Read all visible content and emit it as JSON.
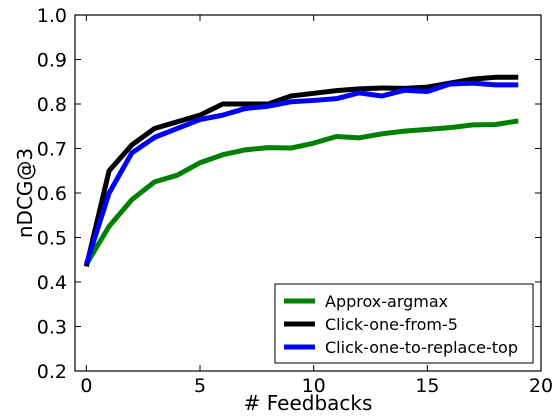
{
  "chart_data": {
    "type": "line",
    "title": "",
    "xlabel": "# Feedbacks",
    "ylabel": "nDCG@3",
    "xlim": [
      -0.5,
      20
    ],
    "ylim": [
      0.2,
      1.0
    ],
    "xticks": [
      0,
      5,
      10,
      15,
      20
    ],
    "xtick_labels": [
      "0",
      "5",
      "10",
      "15",
      "20"
    ],
    "yticks": [
      0.2,
      0.3,
      0.4,
      0.5,
      0.6,
      0.7,
      0.8,
      0.9,
      1.0
    ],
    "ytick_labels": [
      "0.2",
      "0.3",
      "0.4",
      "0.5",
      "0.6",
      "0.7",
      "0.8",
      "0.9",
      "1.0"
    ],
    "grid": false,
    "legend_position": "bottom-right",
    "x": [
      0,
      1,
      2,
      3,
      4,
      5,
      6,
      7,
      8,
      9,
      10,
      11,
      12,
      13,
      14,
      15,
      16,
      17,
      18,
      19
    ],
    "series": [
      {
        "name": "Approx-argmax",
        "color": "#008000",
        "values": [
          0.44,
          0.525,
          0.585,
          0.625,
          0.64,
          0.668,
          0.686,
          0.697,
          0.702,
          0.701,
          0.712,
          0.727,
          0.724,
          0.733,
          0.739,
          0.743,
          0.747,
          0.753,
          0.754,
          0.762
        ]
      },
      {
        "name": "Click-one-from-5",
        "color": "#000000",
        "values": [
          0.435,
          0.65,
          0.708,
          0.745,
          0.76,
          0.775,
          0.8,
          0.8,
          0.8,
          0.818,
          0.824,
          0.83,
          0.834,
          0.836,
          0.835,
          0.838,
          0.847,
          0.856,
          0.86,
          0.86
        ]
      },
      {
        "name": "Click-one-to-replace-top",
        "color": "#0000ff",
        "values": [
          0.44,
          0.6,
          0.69,
          0.725,
          0.745,
          0.765,
          0.775,
          0.79,
          0.795,
          0.805,
          0.808,
          0.812,
          0.825,
          0.818,
          0.831,
          0.828,
          0.845,
          0.847,
          0.843,
          0.843
        ]
      }
    ]
  }
}
